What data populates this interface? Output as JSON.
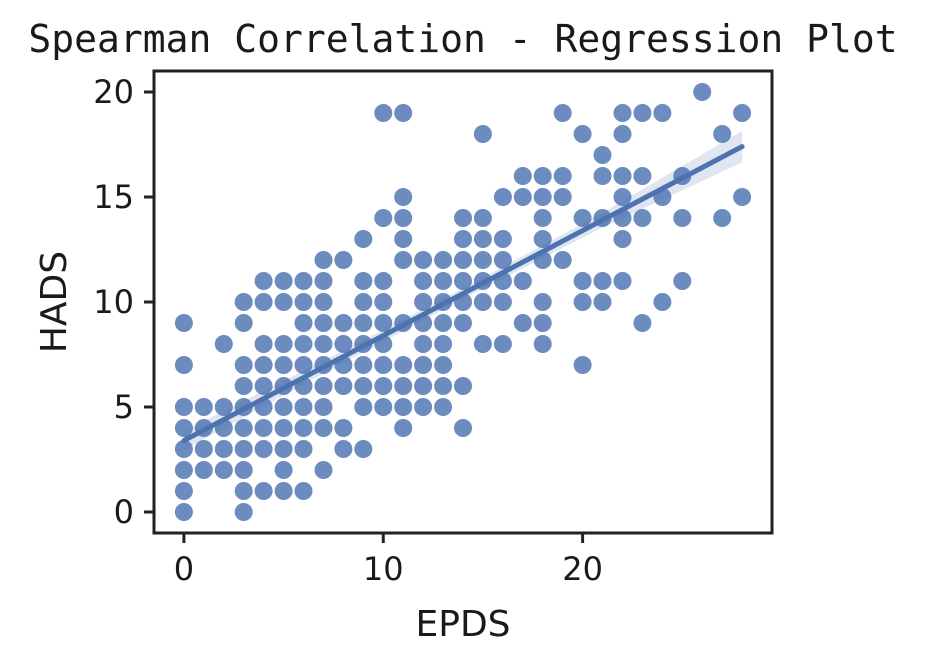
{
  "chart_data": {
    "type": "scatter",
    "title": "Spearman Correlation - Regression Plot",
    "xlabel": "EPDS",
    "ylabel": "HADS",
    "xlim": [
      -1.5,
      29.5
    ],
    "ylim": [
      -1,
      21
    ],
    "xticks": [
      0,
      10,
      20
    ],
    "yticks": [
      0,
      5,
      10,
      15,
      20
    ],
    "grid": false,
    "colors": {
      "points": "#4c72b0",
      "line": "#4c72b0",
      "frame": "#222222"
    },
    "regression": {
      "x": [
        0,
        28
      ],
      "y": [
        3.4,
        17.4
      ],
      "ci_halfwidth": [
        0.45,
        0.3,
        0.25,
        0.35,
        0.75
      ]
    },
    "points": [
      [
        0,
        0
      ],
      [
        0,
        1
      ],
      [
        0,
        2
      ],
      [
        0,
        3
      ],
      [
        0,
        4
      ],
      [
        0,
        5
      ],
      [
        0,
        7
      ],
      [
        0,
        9
      ],
      [
        1,
        2
      ],
      [
        1,
        3
      ],
      [
        1,
        4
      ],
      [
        1,
        5
      ],
      [
        2,
        2
      ],
      [
        2,
        3
      ],
      [
        2,
        4
      ],
      [
        2,
        5
      ],
      [
        2,
        8
      ],
      [
        3,
        0
      ],
      [
        3,
        1
      ],
      [
        3,
        2
      ],
      [
        3,
        3
      ],
      [
        3,
        4
      ],
      [
        3,
        5
      ],
      [
        3,
        6
      ],
      [
        3,
        7
      ],
      [
        3,
        9
      ],
      [
        3,
        10
      ],
      [
        4,
        1
      ],
      [
        4,
        3
      ],
      [
        4,
        4
      ],
      [
        4,
        5
      ],
      [
        4,
        6
      ],
      [
        4,
        7
      ],
      [
        4,
        8
      ],
      [
        4,
        10
      ],
      [
        4,
        11
      ],
      [
        5,
        1
      ],
      [
        5,
        2
      ],
      [
        5,
        3
      ],
      [
        5,
        4
      ],
      [
        5,
        5
      ],
      [
        5,
        6
      ],
      [
        5,
        7
      ],
      [
        5,
        8
      ],
      [
        5,
        10
      ],
      [
        5,
        11
      ],
      [
        6,
        1
      ],
      [
        6,
        3
      ],
      [
        6,
        4
      ],
      [
        6,
        5
      ],
      [
        6,
        6
      ],
      [
        6,
        7
      ],
      [
        6,
        8
      ],
      [
        6,
        9
      ],
      [
        6,
        10
      ],
      [
        6,
        11
      ],
      [
        7,
        2
      ],
      [
        7,
        4
      ],
      [
        7,
        5
      ],
      [
        7,
        6
      ],
      [
        7,
        7
      ],
      [
        7,
        8
      ],
      [
        7,
        9
      ],
      [
        7,
        10
      ],
      [
        7,
        11
      ],
      [
        7,
        12
      ],
      [
        8,
        3
      ],
      [
        8,
        4
      ],
      [
        8,
        6
      ],
      [
        8,
        7
      ],
      [
        8,
        8
      ],
      [
        8,
        9
      ],
      [
        8,
        12
      ],
      [
        9,
        3
      ],
      [
        9,
        5
      ],
      [
        9,
        6
      ],
      [
        9,
        7
      ],
      [
        9,
        8
      ],
      [
        9,
        9
      ],
      [
        9,
        10
      ],
      [
        9,
        11
      ],
      [
        9,
        13
      ],
      [
        10,
        5
      ],
      [
        10,
        6
      ],
      [
        10,
        7
      ],
      [
        10,
        8
      ],
      [
        10,
        9
      ],
      [
        10,
        10
      ],
      [
        10,
        11
      ],
      [
        10,
        14
      ],
      [
        10,
        19
      ],
      [
        11,
        4
      ],
      [
        11,
        5
      ],
      [
        11,
        6
      ],
      [
        11,
        7
      ],
      [
        11,
        9
      ],
      [
        11,
        12
      ],
      [
        11,
        13
      ],
      [
        11,
        14
      ],
      [
        11,
        15
      ],
      [
        11,
        19
      ],
      [
        12,
        5
      ],
      [
        12,
        6
      ],
      [
        12,
        7
      ],
      [
        12,
        8
      ],
      [
        12,
        9
      ],
      [
        12,
        10
      ],
      [
        12,
        11
      ],
      [
        12,
        12
      ],
      [
        13,
        5
      ],
      [
        13,
        6
      ],
      [
        13,
        7
      ],
      [
        13,
        8
      ],
      [
        13,
        9
      ],
      [
        13,
        10
      ],
      [
        13,
        11
      ],
      [
        13,
        12
      ],
      [
        14,
        4
      ],
      [
        14,
        6
      ],
      [
        14,
        9
      ],
      [
        14,
        10
      ],
      [
        14,
        11
      ],
      [
        14,
        12
      ],
      [
        14,
        13
      ],
      [
        14,
        14
      ],
      [
        15,
        8
      ],
      [
        15,
        10
      ],
      [
        15,
        11
      ],
      [
        15,
        12
      ],
      [
        15,
        13
      ],
      [
        15,
        14
      ],
      [
        15,
        18
      ],
      [
        16,
        8
      ],
      [
        16,
        10
      ],
      [
        16,
        11
      ],
      [
        16,
        12
      ],
      [
        16,
        13
      ],
      [
        16,
        15
      ],
      [
        17,
        9
      ],
      [
        17,
        11
      ],
      [
        17,
        15
      ],
      [
        17,
        16
      ],
      [
        18,
        8
      ],
      [
        18,
        9
      ],
      [
        18,
        10
      ],
      [
        18,
        12
      ],
      [
        18,
        13
      ],
      [
        18,
        14
      ],
      [
        18,
        15
      ],
      [
        18,
        16
      ],
      [
        19,
        12
      ],
      [
        19,
        15
      ],
      [
        19,
        16
      ],
      [
        19,
        19
      ],
      [
        20,
        7
      ],
      [
        20,
        10
      ],
      [
        20,
        11
      ],
      [
        20,
        14
      ],
      [
        20,
        18
      ],
      [
        21,
        10
      ],
      [
        21,
        11
      ],
      [
        21,
        14
      ],
      [
        21,
        16
      ],
      [
        21,
        17
      ],
      [
        22,
        11
      ],
      [
        22,
        13
      ],
      [
        22,
        14
      ],
      [
        22,
        15
      ],
      [
        22,
        16
      ],
      [
        22,
        18
      ],
      [
        22,
        19
      ],
      [
        23,
        9
      ],
      [
        23,
        14
      ],
      [
        23,
        16
      ],
      [
        23,
        19
      ],
      [
        24,
        10
      ],
      [
        24,
        15
      ],
      [
        24,
        19
      ],
      [
        25,
        11
      ],
      [
        25,
        14
      ],
      [
        25,
        16
      ],
      [
        26,
        20
      ],
      [
        27,
        14
      ],
      [
        27,
        18
      ],
      [
        28,
        15
      ],
      [
        28,
        19
      ]
    ]
  }
}
